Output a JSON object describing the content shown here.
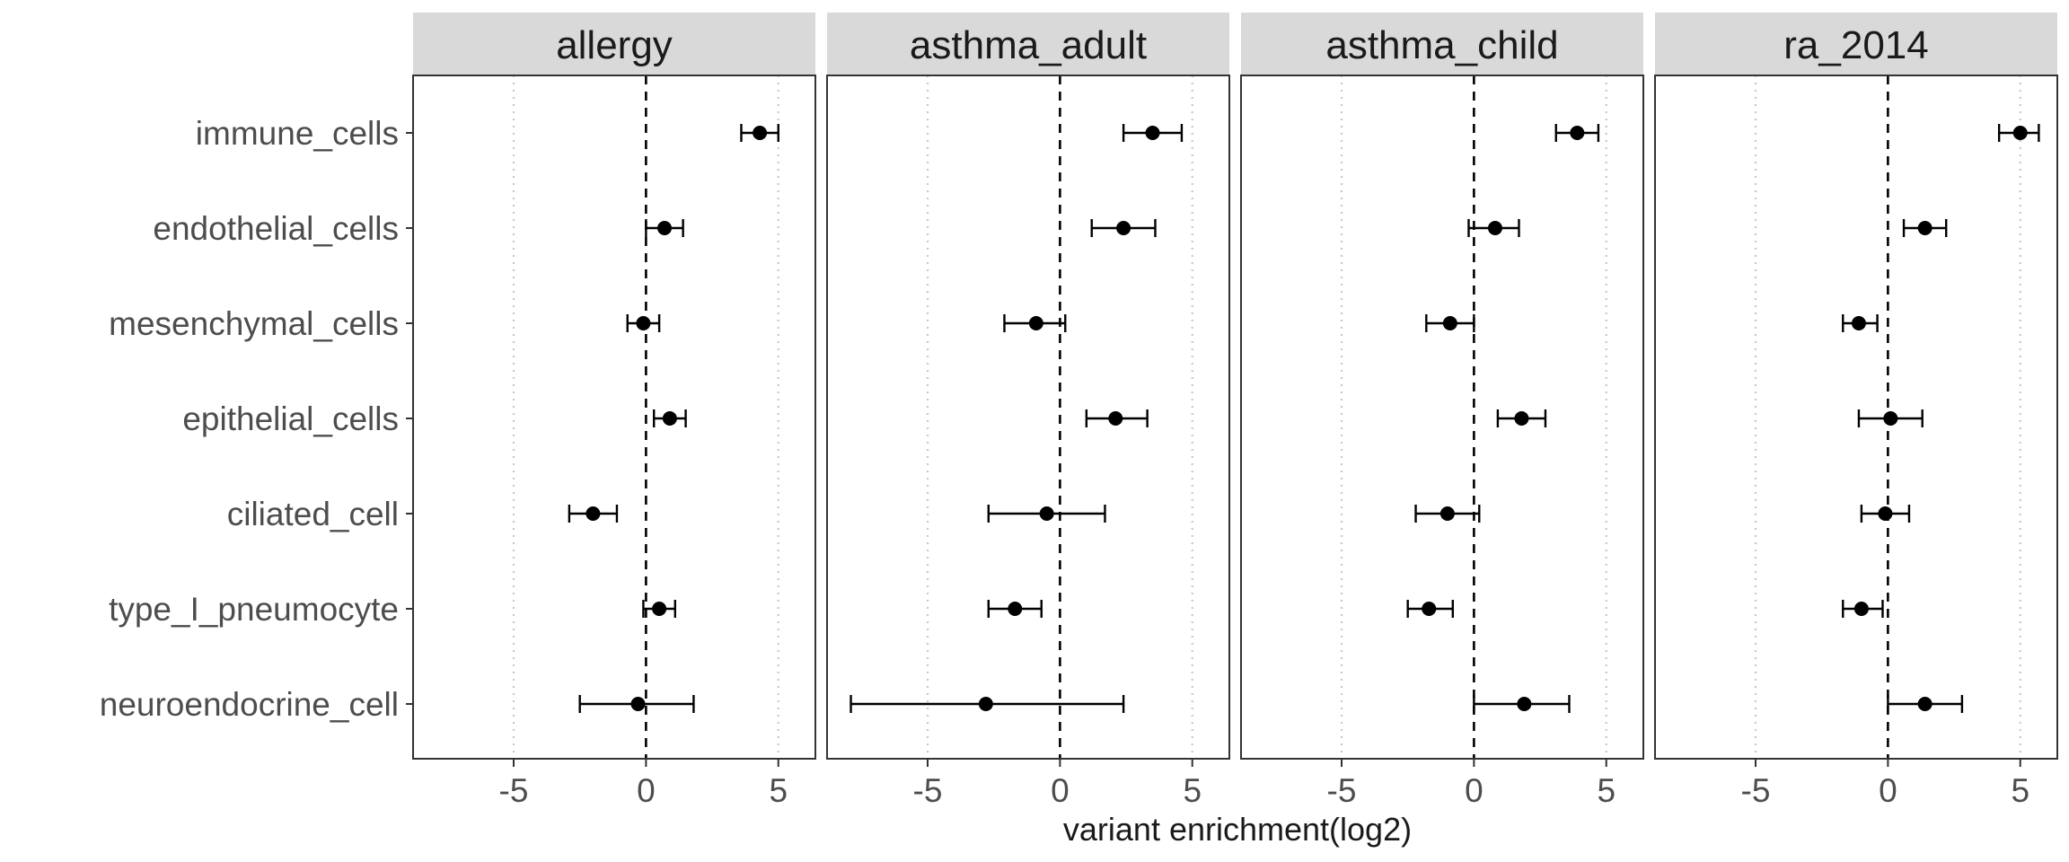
{
  "chart_data": {
    "type": "forest",
    "xlabel": "variant enrichment(log2)",
    "ylabel": "",
    "xlim": [
      -8.8,
      6.4
    ],
    "xticks": [
      -5,
      0,
      5
    ],
    "xtick_labels": [
      "-5",
      "0",
      "5"
    ],
    "reference_line": 0,
    "dotted_gridlines": [
      -5,
      5
    ],
    "categories": [
      "immune_cells",
      "endothelial_cells",
      "mesenchymal_cells",
      "epithelial_cells",
      "ciliated_cell",
      "type_I_pneumocyte",
      "neuroendocrine_cell"
    ],
    "panels": [
      {
        "name": "allergy",
        "est": [
          4.3,
          0.7,
          -0.1,
          0.9,
          -2.0,
          0.5,
          -0.3
        ],
        "lo": [
          3.6,
          0.0,
          -0.7,
          0.3,
          -2.9,
          -0.1,
          -2.5
        ],
        "hi": [
          5.0,
          1.4,
          0.5,
          1.5,
          -1.1,
          1.1,
          1.8
        ]
      },
      {
        "name": "asthma_adult",
        "est": [
          3.5,
          2.4,
          -0.9,
          2.1,
          -0.5,
          -1.7,
          -2.8
        ],
        "lo": [
          2.4,
          1.2,
          -2.1,
          1.0,
          -2.7,
          -2.7,
          -7.9
        ],
        "hi": [
          4.6,
          3.6,
          0.2,
          3.3,
          1.7,
          -0.7,
          2.4
        ]
      },
      {
        "name": "asthma_child",
        "est": [
          3.9,
          0.8,
          -0.9,
          1.8,
          -1.0,
          -1.7,
          1.9
        ],
        "lo": [
          3.1,
          -0.2,
          -1.8,
          0.9,
          -2.2,
          -2.5,
          0.0
        ],
        "hi": [
          4.7,
          1.7,
          0.0,
          2.7,
          0.2,
          -0.8,
          3.6
        ]
      },
      {
        "name": "ra_2014",
        "est": [
          5.0,
          1.4,
          -1.1,
          0.1,
          -0.1,
          -1.0,
          1.4
        ],
        "lo": [
          4.2,
          0.6,
          -1.7,
          -1.1,
          -1.0,
          -1.7,
          0.0
        ],
        "hi": [
          5.7,
          2.2,
          -0.4,
          1.3,
          0.8,
          -0.2,
          2.8
        ]
      }
    ]
  }
}
